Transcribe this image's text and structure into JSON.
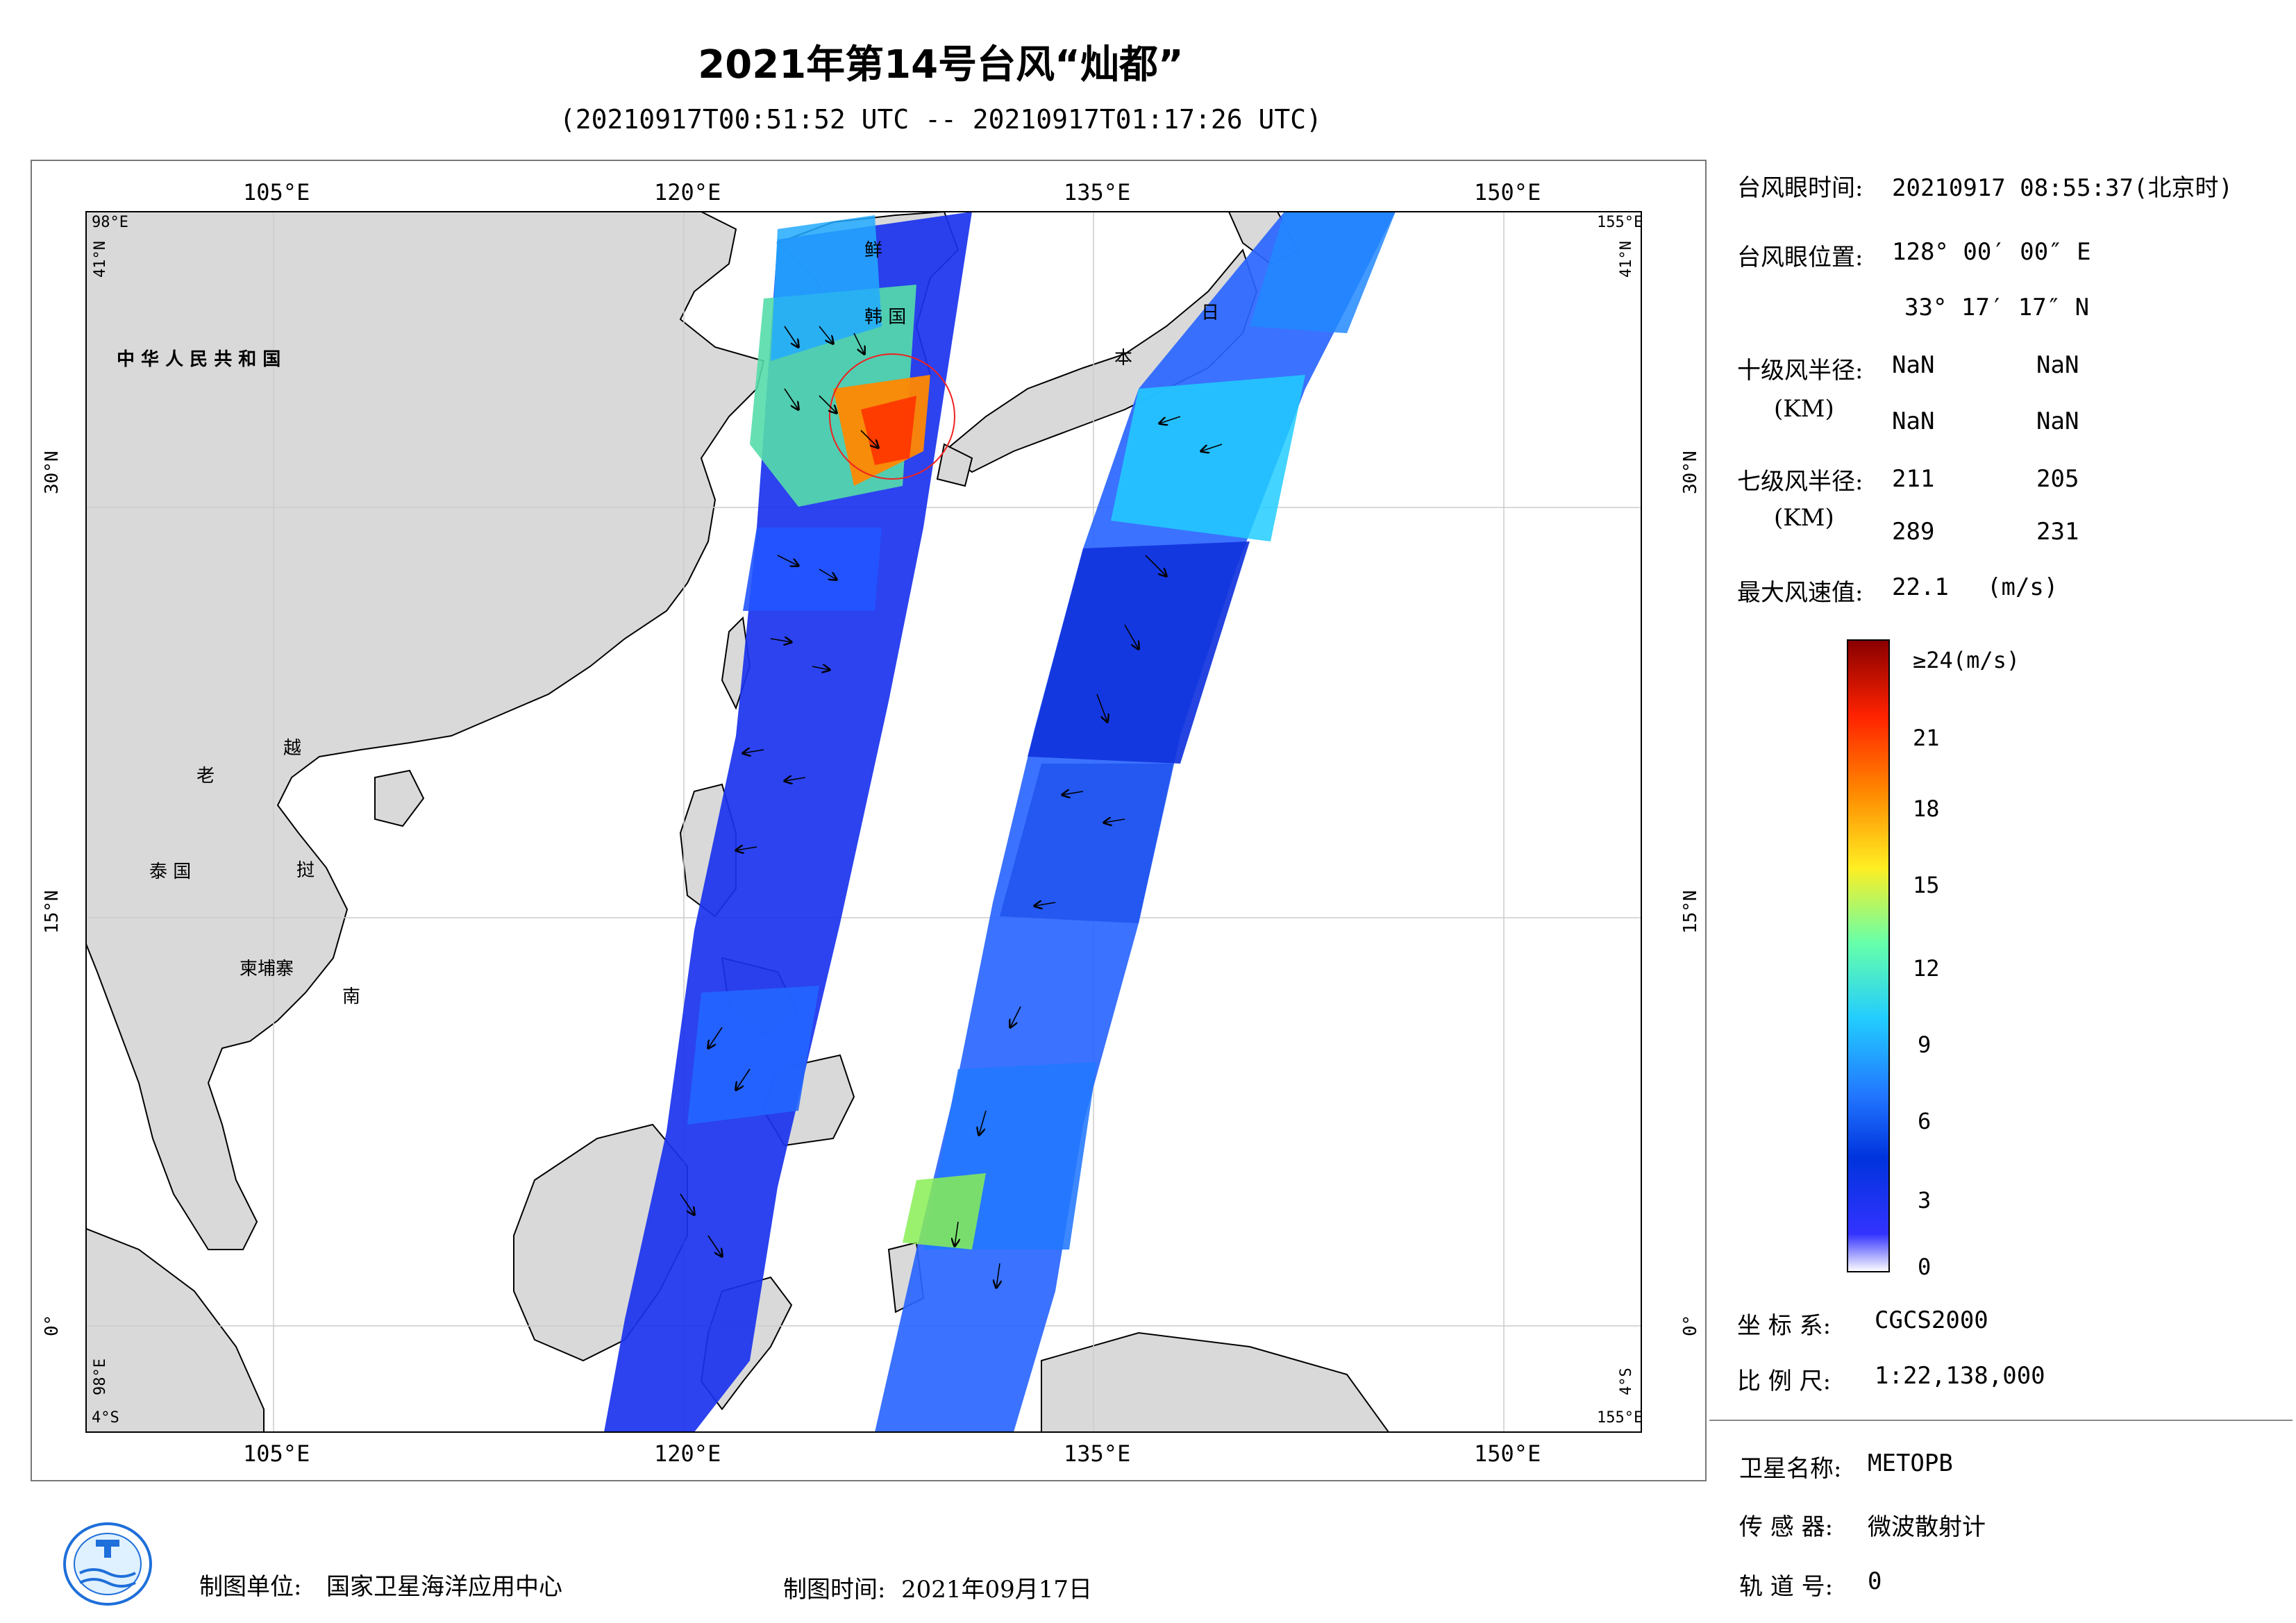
{
  "header": {
    "title": "2021年第14号台风“灿都”",
    "subtitle": "(20210917T00:51:52 UTC -- 20210917T01:17:26 UTC)"
  },
  "map": {
    "lon_range": [
      98,
      155
    ],
    "lat_range": [
      -4,
      41
    ],
    "top_lon_labels": [
      "105°E",
      "120°E",
      "135°E",
      "150°E"
    ],
    "bottom_lon_labels": [
      "105°E",
      "120°E",
      "135°E",
      "150°E"
    ],
    "left_lat_labels": [
      "30°N",
      "15°N",
      "0°"
    ],
    "right_lat_labels": [
      "30°N",
      "15°N",
      "0°"
    ],
    "corner_labels": {
      "top_left_lon": "98°E",
      "top_left_lat": "41°N",
      "top_right_lon": "155°E",
      "top_right_lat": "41°N",
      "bottom_left_lon": "98°E",
      "bottom_left_lat": "4°S",
      "bottom_right_lon": "155°E",
      "bottom_right_lat": "4°S"
    },
    "country_labels": {
      "china": "中 华 人 民 共 和 国",
      "korea_north": "鲜",
      "korea_south": "韩 国",
      "japan_1": "日",
      "japan_2": "本",
      "laos": "老",
      "vietnam_1": "越",
      "vietnam_2": "南",
      "thailand": "泰 国",
      "cambodia": "柬埔寨",
      "vietnam_3": "挝"
    },
    "colors": {
      "land": "#d9d9d9",
      "ocean": "#ffffff",
      "coast": "#000000"
    }
  },
  "info": {
    "eye_time_label": "台风眼时间:",
    "eye_time_value": "20210917 08:55:37(北京时)",
    "eye_pos_label": "台风眼位置:",
    "eye_pos_lon": "128° 00′ 00″ E",
    "eye_pos_lat": "33° 17′ 17″ N",
    "r10_label": "十级风半径:",
    "r10_unit": "(KM)",
    "r10_values": [
      "NaN",
      "NaN",
      "NaN",
      "NaN"
    ],
    "r7_label": "七级风半径:",
    "r7_unit": "(KM)",
    "r7_values": [
      "211",
      "205",
      "289",
      "231"
    ],
    "max_wind_label": "最大风速值:",
    "max_wind_value": "22.1",
    "max_wind_unit": "(m/s)"
  },
  "colorbar": {
    "top_label": "≥24(m/s)",
    "ticks": [
      "21",
      "18",
      "15",
      "12",
      "9",
      "6",
      "3",
      "0"
    ],
    "tick_values": [
      21,
      18,
      15,
      12,
      9,
      6,
      3,
      0
    ],
    "max": 24,
    "stops": [
      "#ffffff",
      "#3333ff",
      "#0033dd",
      "#2277ff",
      "#22ccff",
      "#66ffaa",
      "#ffee22",
      "#ff8800",
      "#ff2200",
      "#880000"
    ]
  },
  "meta": {
    "crs_label": "坐 标 系:",
    "crs_value": "CGCS2000",
    "scale_label": "比 例 尺:",
    "scale_value": "1:22,138,000",
    "satellite_label": "卫星名称:",
    "satellite_value": "METOPB",
    "sensor_label": "传 感 器:",
    "sensor_value": "微波散射计",
    "orbit_label": "轨 道 号:",
    "orbit_value": "0"
  },
  "footer": {
    "org_label": "制图单位:",
    "org_value": "国家卫星海洋应用中心",
    "date_label": "制图时间:",
    "date_value": "2021年09月17日"
  }
}
